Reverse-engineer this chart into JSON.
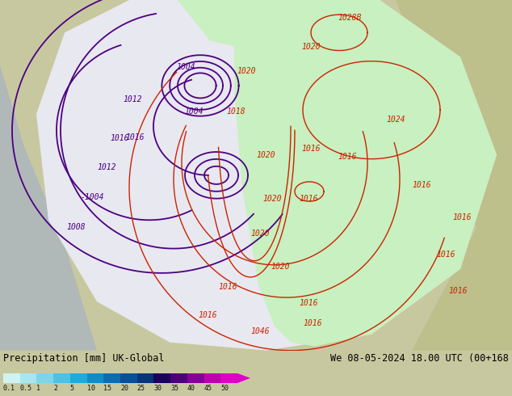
{
  "title_left": "Precipitation [mm] UK-Global",
  "title_right": "We 08-05-2024 18.00 UTC (00+168",
  "colorbar_labels": [
    "0.1",
    "0.5",
    "1",
    "2",
    "5",
    "10",
    "15",
    "20",
    "25",
    "30",
    "35",
    "40",
    "45",
    "50"
  ],
  "colorbar_colors": [
    "#cff3f3",
    "#a8e6ef",
    "#7dd5ea",
    "#4dc2e4",
    "#1aaddc",
    "#0e8ec8",
    "#0a6db4",
    "#064f9a",
    "#033578",
    "#1a005c",
    "#4a0078",
    "#840098",
    "#c000b0",
    "#e000c8"
  ],
  "land_color": "#bdc08a",
  "sea_color": "#b8c8d8",
  "domain_color": "#ececec",
  "precip_color": "#c8f0c0",
  "purple_isobar": "#4b0082",
  "red_isobar": "#cc2200",
  "font_family": "monospace",
  "figure_bg": "#c8c8a0",
  "bottom_bg": "#d8d8c8"
}
